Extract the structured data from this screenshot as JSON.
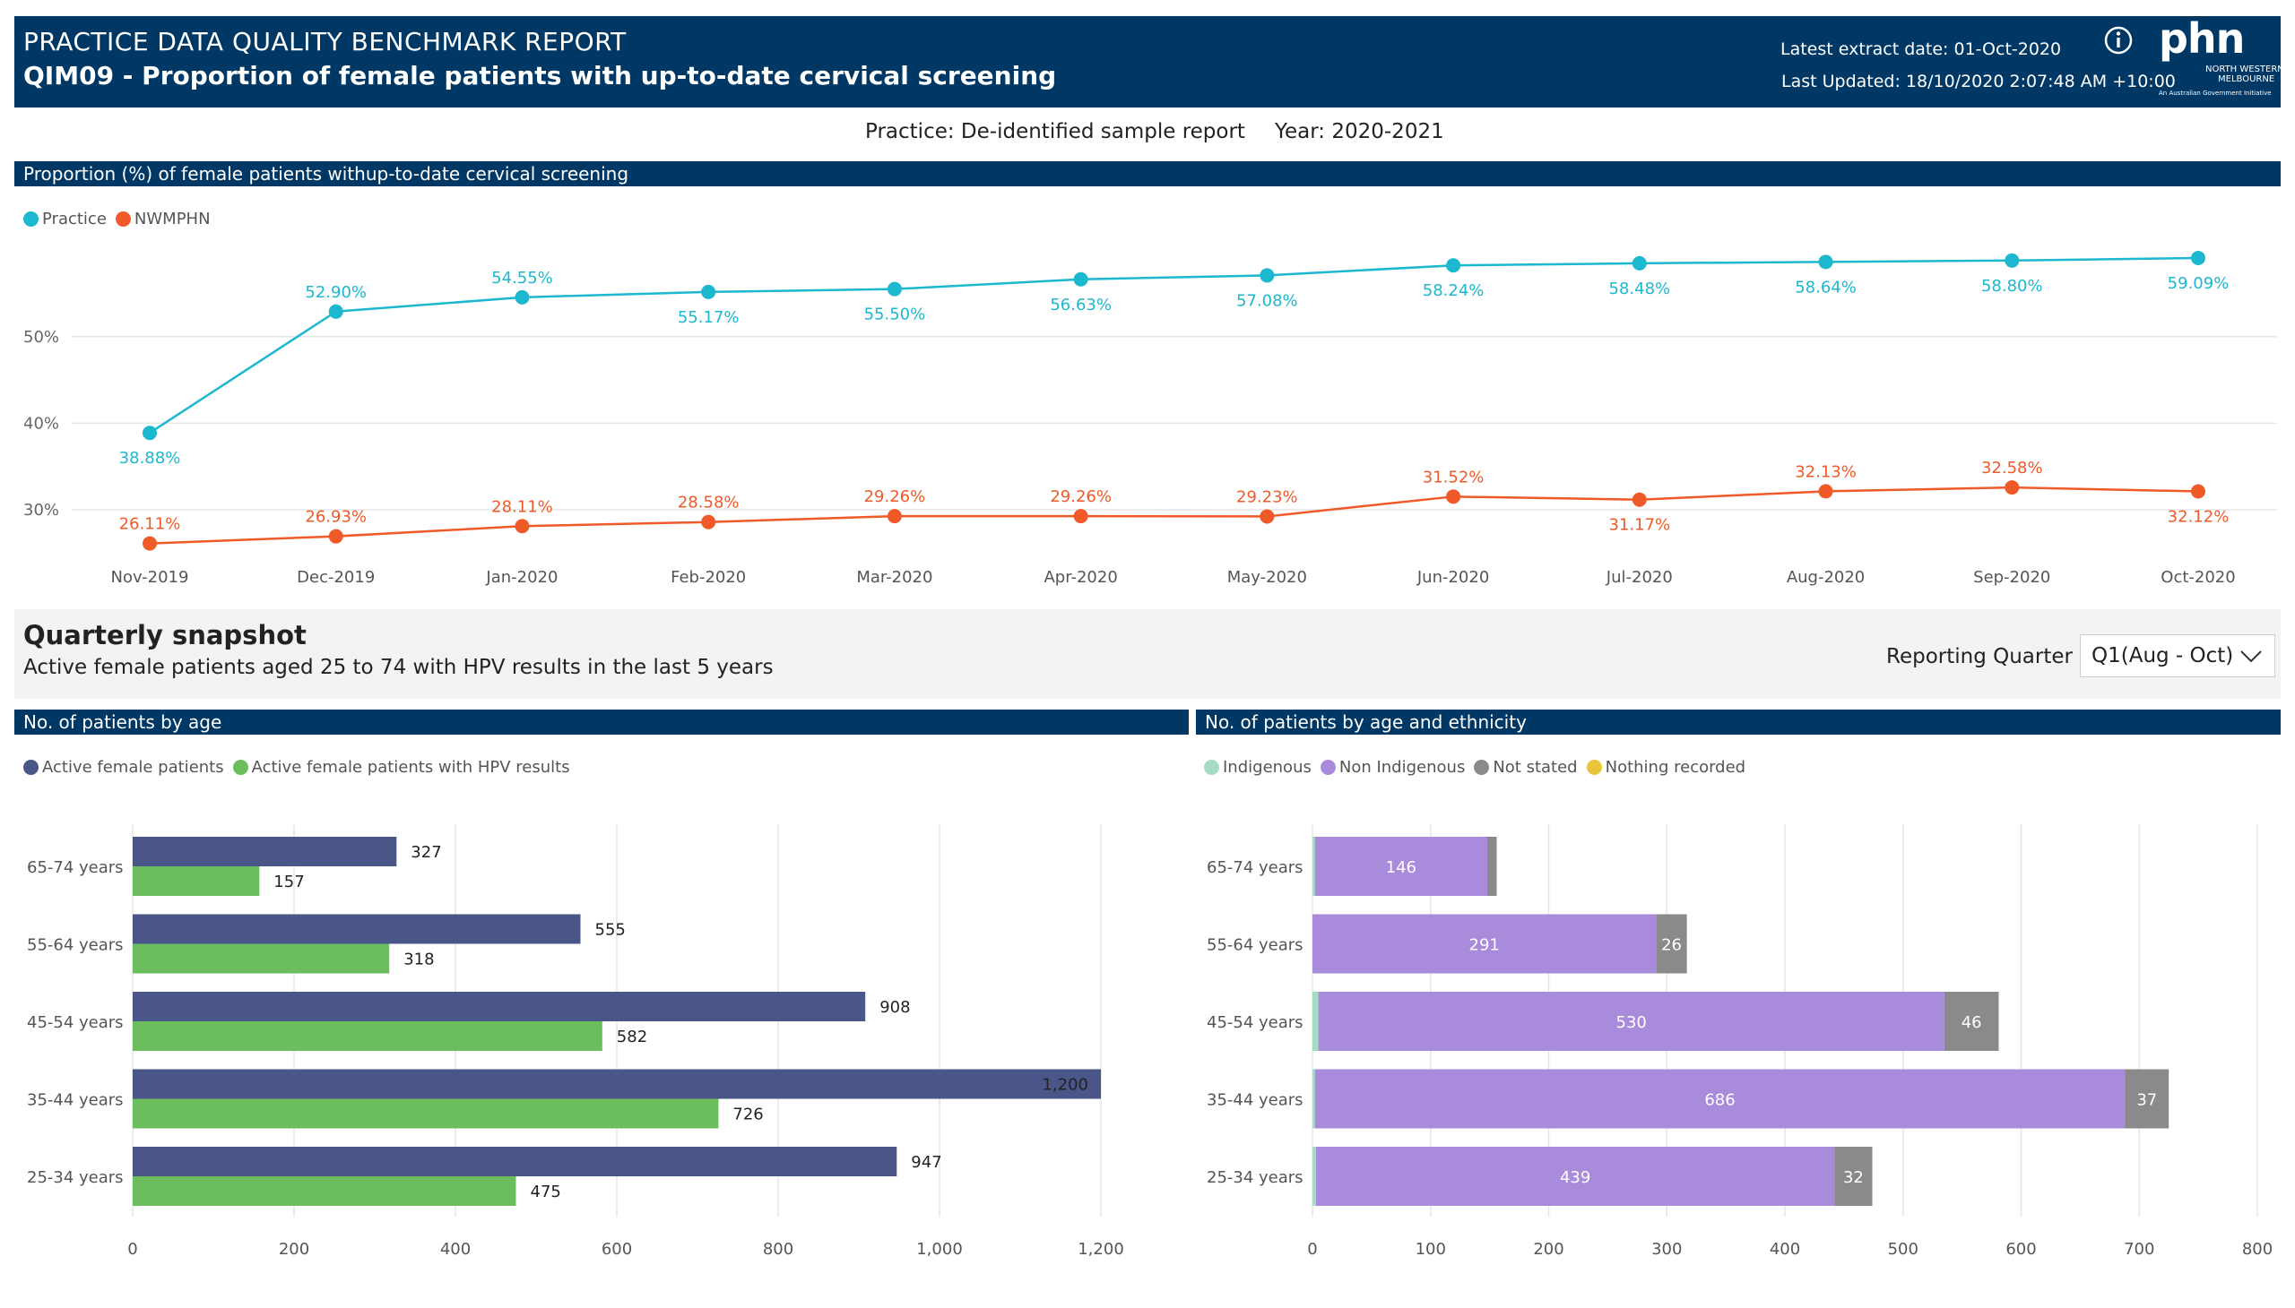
{
  "header": {
    "title": "PRACTICE DATA QUALITY BENCHMARK REPORT",
    "subtitle": "QIM09 - Proportion of female patients with up-to-date cervical screening",
    "extract_date": "Latest extract date: 01-Oct-2020",
    "last_updated": "Last Updated: 18/10/2020 2:07:48 AM +10:00",
    "logo_text": "phn",
    "logo_line1": "NORTH WESTERN",
    "logo_line2": "MELBOURNE",
    "logo_tag": "An Australian Government Initiative",
    "info_icon": "info-icon"
  },
  "practice_label": "Practice: De-identified sample report",
  "year_label": "Year: 2020-2021",
  "trend_section_title": "Proportion (%) of female patients withup-to-date cervical screening",
  "snapshot": {
    "title": "Quarterly snapshot",
    "description": "Active female patients aged 25 to 74 with HPV results  in the last 5 years",
    "quarter_label": "Reporting Quarter",
    "quarter_value": "Q1(Aug - Oct)"
  },
  "age_section_title": "No. of patients by age",
  "eth_section_title": "No. of patients by age and ethnicity",
  "colors": {
    "header": "#003865",
    "practice": "#1bb8d0",
    "nwmphn": "#f05a28",
    "active": "#4a5588",
    "hpv": "#6cbd5e",
    "indigenous": "#a6dcc4",
    "non_indigenous": "#a98bdb",
    "not_stated": "#8a8a8a",
    "nothing_recorded": "#e8c53a"
  },
  "chart_data": [
    {
      "type": "line",
      "x": [
        "Nov-2019",
        "Dec-2019",
        "Jan-2020",
        "Feb-2020",
        "Mar-2020",
        "Apr-2020",
        "May-2020",
        "Jun-2020",
        "Jul-2020",
        "Aug-2020",
        "Sep-2020",
        "Oct-2020"
      ],
      "series": [
        {
          "name": "Practice",
          "values": [
            38.88,
            52.9,
            54.55,
            55.17,
            55.5,
            56.63,
            57.08,
            58.24,
            58.48,
            58.64,
            58.8,
            59.09
          ],
          "labels": [
            "38.88%",
            "52.90%",
            "54.55%",
            "55.17%",
            "55.50%",
            "56.63%",
            "57.08%",
            "58.24%",
            "58.48%",
            "58.64%",
            "58.80%",
            "59.09%"
          ],
          "label_pos": [
            "below",
            "above",
            "above",
            "below",
            "below",
            "below",
            "below",
            "below",
            "below",
            "below",
            "below",
            "below"
          ]
        },
        {
          "name": "NWMPHN",
          "values": [
            26.11,
            26.93,
            28.11,
            28.58,
            29.26,
            29.26,
            29.23,
            31.52,
            31.17,
            32.13,
            32.58,
            32.12
          ],
          "labels": [
            "26.11%",
            "26.93%",
            "28.11%",
            "28.58%",
            "29.26%",
            "29.26%",
            "29.23%",
            "31.52%",
            "31.17%",
            "32.13%",
            "32.58%",
            "32.12%"
          ],
          "label_pos": [
            "above",
            "above",
            "above",
            "above",
            "above",
            "above",
            "above",
            "above",
            "below",
            "above",
            "above",
            "below"
          ]
        }
      ],
      "y_ticks": [
        "30%",
        "40%",
        "50%"
      ],
      "y_tick_values": [
        30,
        40,
        50
      ],
      "ylim": [
        26,
        61
      ],
      "grid": true,
      "legend": "top-left"
    },
    {
      "type": "bar",
      "orientation": "horizontal",
      "categories": [
        "65-74 years",
        "55-64 years",
        "45-54 years",
        "35-44 years",
        "25-34 years"
      ],
      "series": [
        {
          "name": "Active female patients",
          "values": [
            327,
            555,
            908,
            1200,
            947
          ],
          "labels": [
            "327",
            "555",
            "908",
            "1,200",
            "947"
          ]
        },
        {
          "name": "Active female patients with HPV results",
          "values": [
            157,
            318,
            582,
            726,
            475
          ],
          "labels": [
            "157",
            "318",
            "582",
            "726",
            "475"
          ]
        }
      ],
      "x_ticks": [
        "0",
        "200",
        "400",
        "600",
        "800",
        "1,000",
        "1,200"
      ],
      "x_tick_values": [
        0,
        200,
        400,
        600,
        800,
        1000,
        1200
      ],
      "xlim": [
        0,
        1250
      ],
      "grid": true,
      "legend": "top-left"
    },
    {
      "type": "bar",
      "orientation": "horizontal",
      "stacked": true,
      "categories": [
        "65-74 years",
        "55-64 years",
        "45-54 years",
        "35-44 years",
        "25-34 years"
      ],
      "series": [
        {
          "name": "Indigenous",
          "values": [
            2,
            0,
            5,
            2,
            3
          ],
          "labels": [
            "",
            "",
            "",
            "",
            ""
          ]
        },
        {
          "name": "Non Indigenous",
          "values": [
            146,
            291,
            530,
            686,
            439
          ],
          "labels": [
            "146",
            "291",
            "530",
            "686",
            "439"
          ]
        },
        {
          "name": "Not stated",
          "values": [
            8,
            26,
            46,
            37,
            32
          ],
          "labels": [
            "",
            "26",
            "46",
            "37",
            "32"
          ]
        },
        {
          "name": "Nothing recorded",
          "values": [
            0,
            0,
            0,
            0,
            0
          ],
          "labels": [
            "",
            "",
            "",
            "",
            ""
          ]
        }
      ],
      "x_ticks": [
        "0",
        "100",
        "200",
        "300",
        "400",
        "500",
        "600",
        "700",
        "800"
      ],
      "x_tick_values": [
        0,
        100,
        200,
        300,
        400,
        500,
        600,
        700,
        800
      ],
      "xlim": [
        0,
        800
      ],
      "grid": true,
      "legend": "top-left"
    }
  ]
}
